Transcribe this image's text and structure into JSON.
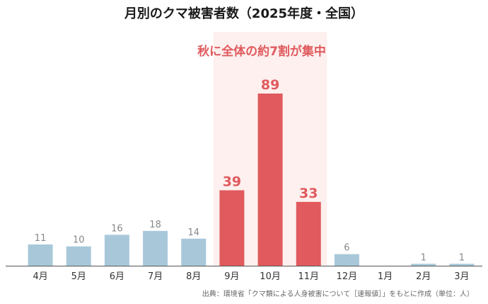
{
  "chart_data": {
    "type": "bar",
    "title": "月別のクマ被害者数（2025年度・全国）",
    "categories": [
      "4月",
      "5月",
      "6月",
      "7月",
      "8月",
      "9月",
      "10月",
      "11月",
      "12月",
      "1月",
      "2月",
      "3月"
    ],
    "values": [
      11,
      10,
      16,
      18,
      14,
      39,
      89,
      33,
      6,
      0,
      1,
      1
    ],
    "value_labels": [
      "11",
      "10",
      "16",
      "18",
      "14",
      "39",
      "89",
      "33",
      "6",
      "",
      "1",
      "1"
    ],
    "highlight_indices": [
      5,
      6,
      7
    ],
    "annotation": "秋に全体の約7割が集中",
    "source": "出典：環境省「クマ類による人身被害について［速報値］」をもとに作成（単位：人）",
    "ylim": [
      0,
      100
    ],
    "grid": false,
    "colors": {
      "normal": "#a8c8da",
      "highlight": "#e05a5e",
      "highlight_band": "#fdf0ee",
      "axis": "#555555"
    }
  }
}
